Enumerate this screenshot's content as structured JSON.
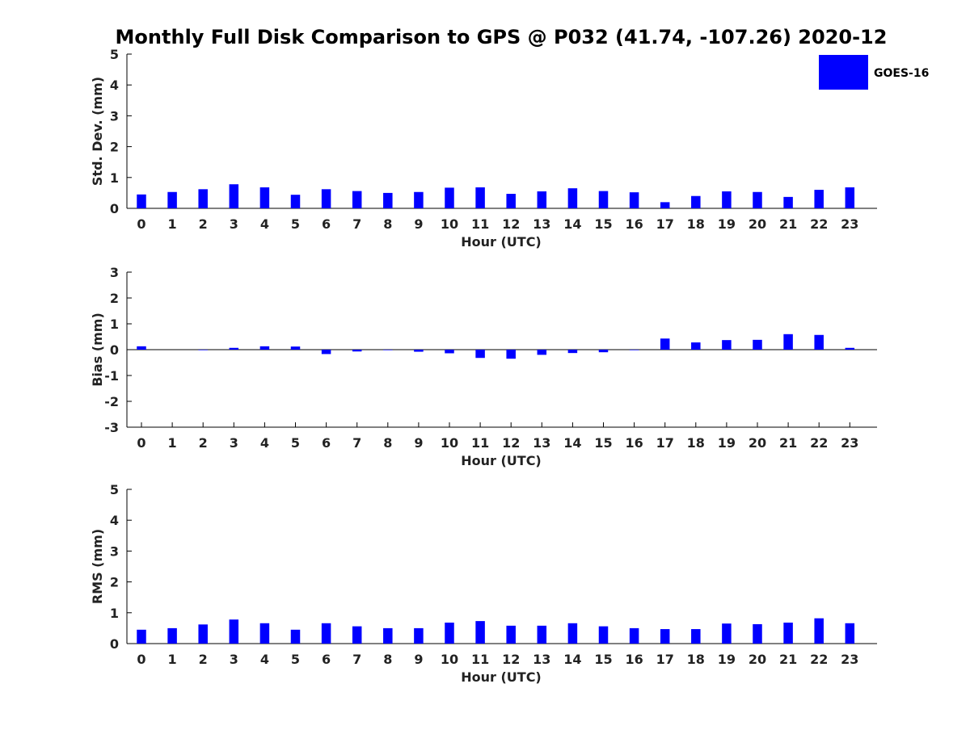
{
  "title": "Monthly Full Disk Comparison to GPS @ P032 (41.74, -107.26) 2020-12",
  "legend": {
    "label": "GOES-16",
    "color": "#0000ff",
    "placement": "top-right"
  },
  "bar_color": "#0000ff",
  "chart_data": [
    {
      "type": "bar",
      "categories": [
        "0",
        "1",
        "2",
        "3",
        "4",
        "5",
        "6",
        "7",
        "8",
        "9",
        "10",
        "11",
        "12",
        "13",
        "14",
        "15",
        "16",
        "17",
        "18",
        "19",
        "20",
        "21",
        "22",
        "23"
      ],
      "series": [
        {
          "name": "GOES-16",
          "values": [
            0.45,
            0.53,
            0.62,
            0.78,
            0.68,
            0.44,
            0.62,
            0.56,
            0.5,
            0.53,
            0.67,
            0.68,
            0.47,
            0.55,
            0.65,
            0.56,
            0.52,
            0.2,
            0.4,
            0.55,
            0.53,
            0.37,
            0.6,
            0.68
          ]
        }
      ],
      "xlabel": "Hour (UTC)",
      "ylabel": "Std. Dev. (mm)",
      "ylim": [
        0,
        5
      ],
      "yticks": [
        0,
        1,
        2,
        3,
        4,
        5
      ]
    },
    {
      "type": "bar",
      "categories": [
        "0",
        "1",
        "2",
        "3",
        "4",
        "5",
        "6",
        "7",
        "8",
        "9",
        "10",
        "11",
        "12",
        "13",
        "14",
        "15",
        "16",
        "17",
        "18",
        "19",
        "20",
        "21",
        "22",
        "23"
      ],
      "series": [
        {
          "name": "GOES-16",
          "values": [
            0.13,
            0.0,
            -0.02,
            0.07,
            0.13,
            0.12,
            -0.17,
            -0.07,
            -0.02,
            -0.08,
            -0.14,
            -0.32,
            -0.35,
            -0.2,
            -0.13,
            -0.1,
            -0.02,
            0.43,
            0.28,
            0.37,
            0.38,
            0.6,
            0.57,
            0.07
          ]
        }
      ],
      "xlabel": "Hour (UTC)",
      "ylabel": "Bias (mm)",
      "ylim": [
        -3,
        3
      ],
      "yticks": [
        -3,
        -2,
        -1,
        0,
        1,
        2,
        3
      ]
    },
    {
      "type": "bar",
      "categories": [
        "0",
        "1",
        "2",
        "3",
        "4",
        "5",
        "6",
        "7",
        "8",
        "9",
        "10",
        "11",
        "12",
        "13",
        "14",
        "15",
        "16",
        "17",
        "18",
        "19",
        "20",
        "21",
        "22",
        "23"
      ],
      "series": [
        {
          "name": "GOES-16",
          "values": [
            0.45,
            0.5,
            0.62,
            0.78,
            0.66,
            0.45,
            0.66,
            0.56,
            0.5,
            0.5,
            0.68,
            0.73,
            0.58,
            0.58,
            0.66,
            0.56,
            0.5,
            0.47,
            0.47,
            0.65,
            0.63,
            0.68,
            0.82,
            0.66
          ]
        }
      ],
      "xlabel": "Hour (UTC)",
      "ylabel": "RMS (mm)",
      "ylim": [
        0,
        5
      ],
      "yticks": [
        0,
        1,
        2,
        3,
        4,
        5
      ]
    }
  ]
}
